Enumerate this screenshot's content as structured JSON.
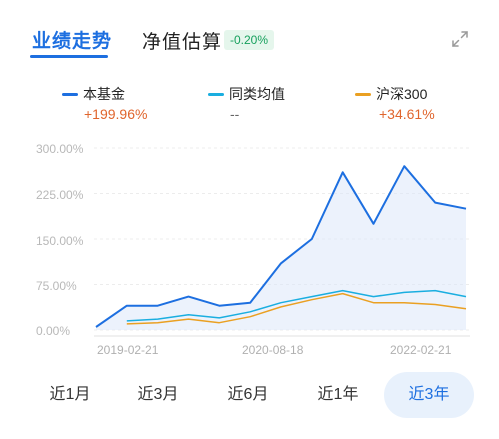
{
  "tabs": {
    "performance": "业绩走势",
    "estimate": "净值估算",
    "estimate_change": "-0.20%"
  },
  "legend": [
    {
      "name": "本基金",
      "value": "+199.96%",
      "color": "#1d6fe0",
      "trend": "up"
    },
    {
      "name": "同类均值",
      "value": "--",
      "color": "#1aaee0",
      "trend": "flat"
    },
    {
      "name": "沪深300",
      "value": "+34.61%",
      "color": "#eaa022",
      "trend": "up"
    }
  ],
  "icons": {
    "expand": "expand-icon"
  },
  "periods": [
    {
      "label": "近1月",
      "active": false
    },
    {
      "label": "近3月",
      "active": false
    },
    {
      "label": "近6月",
      "active": false
    },
    {
      "label": "近1年",
      "active": false
    },
    {
      "label": "近3年",
      "active": true
    }
  ],
  "chart_data": {
    "type": "line",
    "ylim": [
      0,
      300
    ],
    "yticks": [
      "300.00%",
      "225.00%",
      "150.00%",
      "75.00%",
      "0.00%"
    ],
    "xticks": [
      "2019-02-21",
      "2020-08-18",
      "2022-02-21"
    ],
    "x": [
      "2019-02",
      "2019-05",
      "2019-08",
      "2019-11",
      "2020-02",
      "2020-05",
      "2020-08",
      "2020-11",
      "2021-02",
      "2021-05",
      "2021-08",
      "2021-11",
      "2022-02"
    ],
    "series": [
      {
        "name": "本基金",
        "color": "#1d6fe0",
        "values": [
          5,
          40,
          40,
          55,
          40,
          45,
          110,
          150,
          260,
          175,
          270,
          210,
          200
        ]
      },
      {
        "name": "同类均值",
        "color": "#1aaee0",
        "values": [
          null,
          15,
          18,
          25,
          20,
          30,
          45,
          55,
          65,
          55,
          62,
          65,
          55
        ]
      },
      {
        "name": "沪深300",
        "color": "#eaa022",
        "values": [
          null,
          10,
          12,
          18,
          12,
          22,
          38,
          50,
          60,
          45,
          45,
          42,
          35
        ]
      }
    ]
  }
}
